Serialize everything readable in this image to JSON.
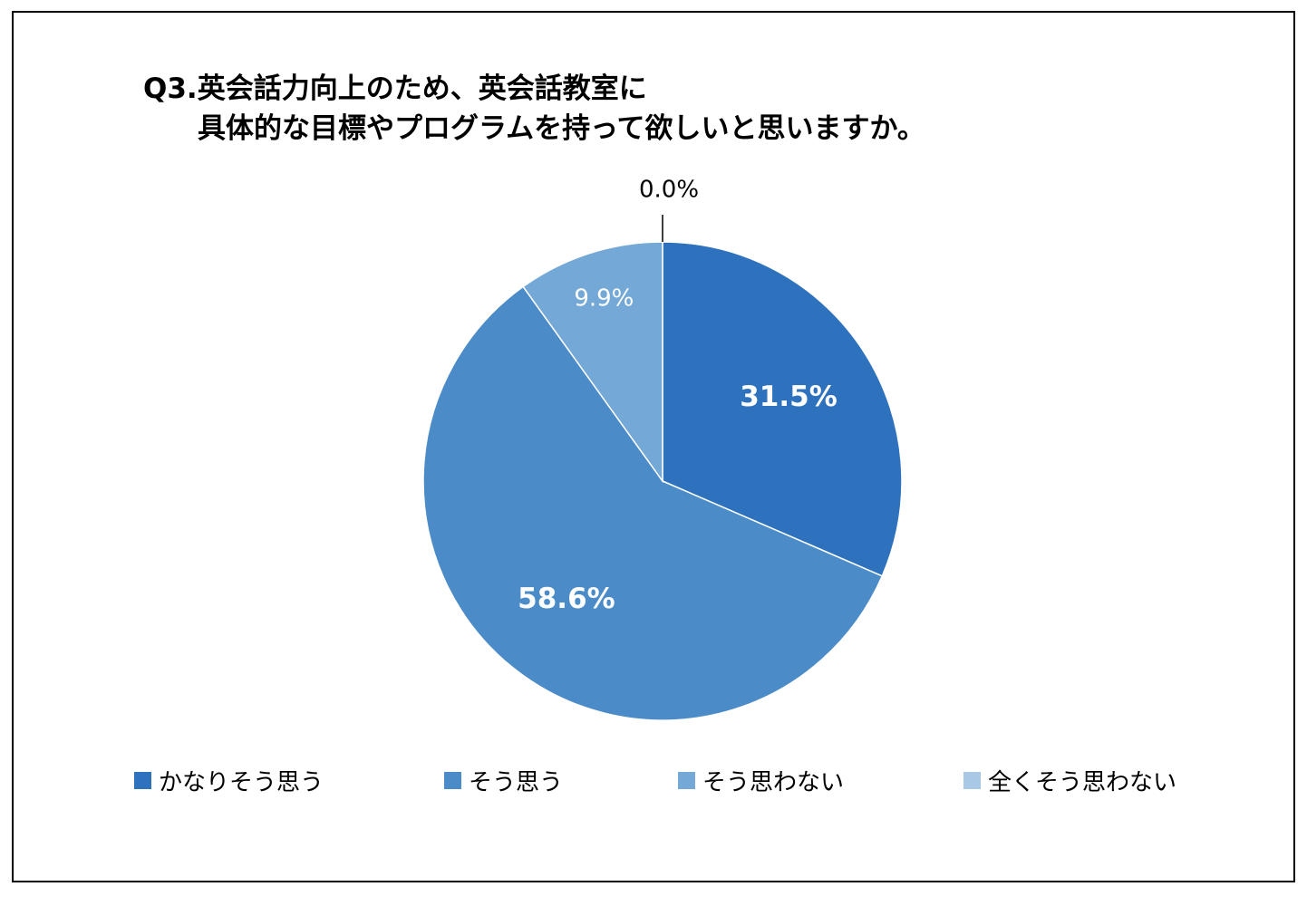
{
  "chart_data": {
    "type": "pie",
    "title_line1": "Q3.英会話力向上のため、英会話教室に",
    "title_line2": "具体的な目標やプログラムを持って欲しいと思いますか。",
    "categories": [
      "かなりそう思う",
      "そう思う",
      "そう思わない",
      "全くそう思わない"
    ],
    "values": [
      31.5,
      58.6,
      9.9,
      0.0
    ],
    "value_labels": [
      "31.5%",
      "58.6%",
      "9.9%",
      "0.0%"
    ],
    "colors": [
      "#2e72bd",
      "#4a8bc8",
      "#74a8d6",
      "#a8c8e6"
    ],
    "legend_position": "bottom"
  }
}
